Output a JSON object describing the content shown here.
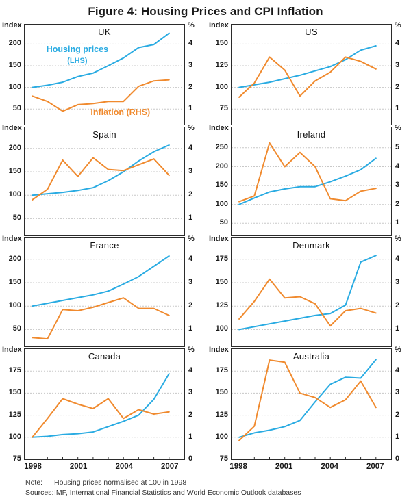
{
  "title": "Figure 4: Housing Prices and CPI Inflation",
  "colors": {
    "housing_line": "#29ABE2",
    "inflation_line": "#F08A2E",
    "gridline": "#C8C8C8",
    "panel_border": "#2B2B2B",
    "tick_mark": "#2B2B2B",
    "text": "#1A1A1A"
  },
  "legend": {
    "housing_label": "Housing prices",
    "housing_sub_label": "(LHS)",
    "inflation_label": "Inflation (RHS)"
  },
  "footer": {
    "note_label": "Note:",
    "note_text": "Housing prices normalised at 100 in 1998",
    "sources_label": "Sources:",
    "sources_text": "IMF, International Financial Statistics and World Economic Outlook databases"
  },
  "chart_data": {
    "type": "line",
    "x": [
      1998,
      1999,
      2000,
      2001,
      2002,
      2003,
      2004,
      2005,
      2006,
      2007
    ],
    "x_tick_labels": [
      "1998",
      "2001",
      "2004",
      "2007"
    ],
    "left_axis_label": "Index",
    "right_axis_label": "%",
    "grid": true,
    "panels": [
      {
        "country": "UK",
        "left_ticks": [
          200,
          150,
          100,
          50
        ],
        "right_ticks": [
          4,
          3,
          2,
          1
        ],
        "left_ylim": [
          14,
          245
        ],
        "series": [
          {
            "name": "Housing prices",
            "axis": "left",
            "values": [
              100,
              105,
              112,
              125,
              133,
              150,
              168,
              192,
              199,
              225
            ]
          },
          {
            "name": "Inflation",
            "axis": "right",
            "values": [
              1.6,
              1.35,
              0.9,
              1.2,
              1.25,
              1.35,
              1.35,
              2.05,
              2.3,
              2.35
            ]
          }
        ]
      },
      {
        "country": "US",
        "left_ticks": [
          150,
          125,
          100,
          75
        ],
        "right_ticks": [
          4,
          3,
          2,
          1
        ],
        "left_ylim": [
          57,
          172.5
        ],
        "series": [
          {
            "name": "Housing prices",
            "axis": "left",
            "values": [
              100,
              103,
              106,
              110,
              114,
              119,
              124,
              132,
              143,
              148
            ]
          },
          {
            "name": "Inflation",
            "axis": "right",
            "values": [
              1.55,
              2.2,
              3.4,
              2.8,
              1.6,
              2.3,
              2.7,
              3.4,
              3.2,
              2.85
            ]
          }
        ]
      },
      {
        "country": "Spain",
        "left_ticks": [
          200,
          150,
          100,
          50
        ],
        "right_ticks": [
          4,
          3,
          2,
          1
        ],
        "left_ylim": [
          14,
          245
        ],
        "series": [
          {
            "name": "Housing prices",
            "axis": "left",
            "values": [
              100,
              103,
              106,
              110,
              116,
              131,
              150,
              173,
              193,
              207
            ]
          },
          {
            "name": "Inflation",
            "axis": "right",
            "values": [
              1.8,
              2.25,
              3.5,
              2.8,
              3.6,
              3.1,
              3.05,
              3.3,
              3.55,
              2.85
            ]
          }
        ]
      },
      {
        "country": "Ireland",
        "left_ticks": [
          250,
          200,
          150,
          100,
          50
        ],
        "right_ticks": [
          5,
          4,
          3,
          2,
          1
        ],
        "left_ylim": [
          18,
          304
        ],
        "series": [
          {
            "name": "Housing prices",
            "axis": "left",
            "values": [
              100,
              117,
              133,
              141,
              147,
              147,
              160,
              175,
              192,
              222
            ]
          },
          {
            "name": "Inflation",
            "axis": "right",
            "values": [
              2.15,
              2.45,
              5.25,
              4.0,
              4.75,
              4.0,
              2.3,
              2.2,
              2.7,
              2.85
            ]
          }
        ]
      },
      {
        "country": "France",
        "left_ticks": [
          200,
          150,
          100,
          50
        ],
        "right_ticks": [
          4,
          3,
          2,
          1
        ],
        "left_ylim": [
          14,
          245
        ],
        "series": [
          {
            "name": "Housing prices",
            "axis": "left",
            "values": [
              100,
              106,
              112,
              118,
              124,
              132,
              147,
              163,
              185,
              207
            ]
          },
          {
            "name": "Inflation",
            "axis": "right",
            "values": [
              0.65,
              0.6,
              1.85,
              1.8,
              1.95,
              2.15,
              2.35,
              1.9,
              1.9,
              1.6
            ]
          }
        ]
      },
      {
        "country": "Denmark",
        "left_ticks": [
          175,
          150,
          125,
          100
        ],
        "right_ticks": [
          4,
          3,
          2,
          1
        ],
        "left_ylim": [
          82,
          197.5
        ],
        "series": [
          {
            "name": "Housing prices",
            "axis": "left",
            "values": [
              100,
              103,
              106,
              109,
              112,
              115,
              117,
              126,
              172,
              179
            ]
          },
          {
            "name": "Inflation",
            "axis": "right",
            "values": [
              1.45,
              2.2,
              3.15,
              2.35,
              2.4,
              2.1,
              1.15,
              1.8,
              1.9,
              1.7
            ]
          }
        ]
      },
      {
        "country": "Canada",
        "left_ticks": [
          175,
          150,
          125,
          100,
          75
        ],
        "right_ticks": [
          4,
          3,
          2,
          1,
          0
        ],
        "left_ylim": [
          75,
          200
        ],
        "series": [
          {
            "name": "Housing prices",
            "axis": "left",
            "values": [
              100,
              101,
              103,
              104,
              106,
              112,
              118,
              125,
              143,
              172
            ]
          },
          {
            "name": "Inflation",
            "axis": "right",
            "values": [
              1.0,
              1.85,
              2.75,
              2.5,
              2.3,
              2.75,
              1.85,
              2.25,
              2.05,
              2.15
            ]
          }
        ]
      },
      {
        "country": "Australia",
        "left_ticks": [
          175,
          150,
          125,
          100,
          75
        ],
        "right_ticks": [
          4,
          3,
          2,
          1,
          0
        ],
        "left_ylim": [
          75,
          200
        ],
        "series": [
          {
            "name": "Housing prices",
            "axis": "left",
            "values": [
              100,
              105,
              108,
              112,
              119,
              140,
              160,
              168,
              167,
              188
            ]
          },
          {
            "name": "Inflation",
            "axis": "right",
            "values": [
              0.85,
              1.5,
              4.5,
              4.4,
              3.0,
              2.8,
              2.35,
              2.7,
              3.55,
              2.35
            ]
          }
        ]
      }
    ]
  }
}
